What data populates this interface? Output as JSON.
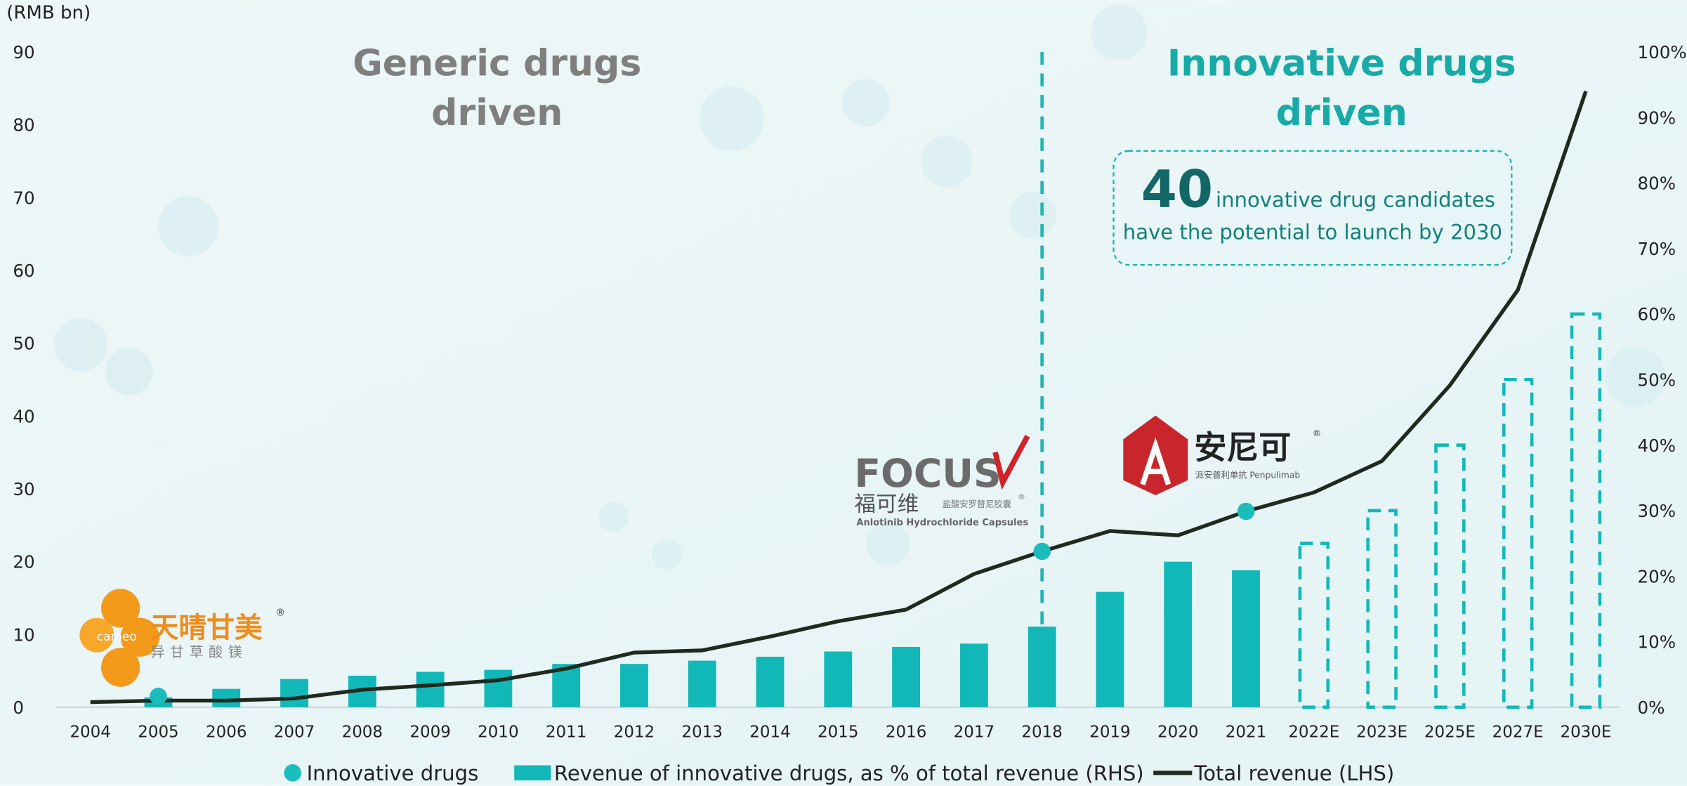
{
  "chart_data": {
    "type": "combo",
    "y_axis_label": "(RMB bn)",
    "categories": [
      "2004",
      "2005",
      "2006",
      "2007",
      "2008",
      "2009",
      "2010",
      "2011",
      "2012",
      "2013",
      "2014",
      "2015",
      "2016",
      "2017",
      "2018",
      "2019",
      "2020",
      "2021",
      "2022E",
      "2023E",
      "2025E",
      "2027E",
      "2030E"
    ],
    "ylim": [
      0,
      90
    ],
    "yticks": [
      0,
      10,
      20,
      30,
      40,
      50,
      60,
      70,
      80,
      90
    ],
    "y2lim": [
      0,
      100
    ],
    "y2ticks": [
      {
        "value": 0,
        "label": "0%"
      },
      {
        "value": 10,
        "label": "10%"
      },
      {
        "value": 20,
        "label": "20%"
      },
      {
        "value": 30,
        "label": "30%"
      },
      {
        "value": 40,
        "label": "40%"
      },
      {
        "value": 50,
        "label": "50%"
      },
      {
        "value": 60,
        "label": "60%"
      },
      {
        "value": 70,
        "label": "70%"
      },
      {
        "value": 80,
        "label": "80%"
      },
      {
        "value": 90,
        "label": "90%"
      },
      {
        "value": 100,
        "label": "100%"
      }
    ],
    "series": [
      {
        "name": "Innovative drugs",
        "type": "scatter",
        "color": "#1bbcbc",
        "values": [
          null,
          1.5,
          null,
          null,
          null,
          null,
          null,
          null,
          null,
          null,
          null,
          null,
          null,
          null,
          21.4,
          null,
          null,
          26.9,
          null,
          null,
          null,
          null,
          null
        ]
      },
      {
        "name": "Revenue of innovative drugs, as % of total revenue (RHS)",
        "type": "bar",
        "axis": "y2",
        "color": "#12b8b8",
        "values": [
          null,
          1.5,
          2.8,
          4.3,
          4.8,
          5.4,
          5.7,
          6.6,
          6.6,
          7.1,
          7.7,
          8.5,
          9.2,
          9.7,
          12.3,
          17.6,
          22.2,
          20.9,
          25,
          30,
          40,
          50,
          60
        ],
        "dashed": [
          false,
          false,
          false,
          false,
          false,
          false,
          false,
          false,
          false,
          false,
          false,
          false,
          false,
          false,
          false,
          false,
          false,
          false,
          true,
          true,
          true,
          true,
          true
        ]
      },
      {
        "name": "Total revenue (LHS)",
        "type": "line",
        "color": "#1e2a1e",
        "values": [
          0.7,
          0.9,
          0.9,
          1.2,
          2.4,
          3.0,
          3.7,
          5.3,
          7.5,
          7.8,
          9.7,
          11.8,
          13.4,
          18.3,
          21.4,
          24.2,
          23.6,
          26.9,
          29.5,
          33.8,
          44.2,
          57.3,
          84.6
        ]
      }
    ],
    "divider_at": "2018",
    "left_heading": [
      "Generic drugs",
      "driven"
    ],
    "right_heading": [
      "Innovative drugs",
      "driven"
    ],
    "callout": {
      "number": "40",
      "line1": "innovative drug candidates",
      "line2": "have the potential to launch by 2030"
    },
    "logos": {
      "cameo": {
        "brand": "cameo",
        "name": "天晴甘美",
        "sub": "异甘草酸镁",
        "mark": "®"
      },
      "focus": {
        "brand": "FOCUS",
        "name": "福可维",
        "sub": "盐酸安罗替尼胶囊",
        "en": "Anlotinib Hydrochloride Capsules",
        "mark": "®"
      },
      "anike": {
        "name": "安尼可",
        "sub": "派安普利单抗 Penpulimab",
        "mark": "®"
      }
    }
  }
}
